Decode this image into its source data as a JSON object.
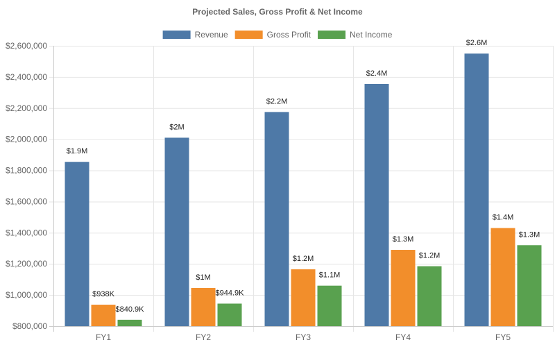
{
  "chart_data": {
    "type": "bar",
    "title": "Projected Sales, Gross Profit & Net Income",
    "xlabel": "",
    "ylabel": "",
    "categories": [
      "FY1",
      "FY2",
      "FY3",
      "FY4",
      "FY5"
    ],
    "ylim": [
      800000,
      2600000
    ],
    "ytick_values": [
      800000,
      1000000,
      1200000,
      1400000,
      1600000,
      1800000,
      2000000,
      2200000,
      2400000,
      2600000
    ],
    "ytick_labels": [
      "$800,000",
      "$1,000,000",
      "$1,200,000",
      "$1,400,000",
      "$1,600,000",
      "$1,800,000",
      "$2,000,000",
      "$2,200,000",
      "$2,400,000",
      "$2,600,000"
    ],
    "grid": true,
    "legend_position": "top-center",
    "series": [
      {
        "name": "Revenue",
        "color": "#4e79a7",
        "values": [
          1855000,
          2010000,
          2175000,
          2355000,
          2550000
        ],
        "labels": [
          "$1.9M",
          "$2M",
          "$2.2M",
          "$2.4M",
          "$2.6M"
        ]
      },
      {
        "name": "Gross Profit",
        "color": "#f28e2b",
        "values": [
          938000,
          1045000,
          1165000,
          1290000,
          1430000
        ],
        "labels": [
          "$938K",
          "$1M",
          "$1.2M",
          "$1.3M",
          "$1.4M"
        ]
      },
      {
        "name": "Net Income",
        "color": "#59a14f",
        "values": [
          840900,
          944900,
          1060000,
          1185000,
          1320000
        ],
        "labels": [
          "$840.9K",
          "$944.9K",
          "$1.1M",
          "$1.2M",
          "$1.3M"
        ]
      }
    ]
  }
}
